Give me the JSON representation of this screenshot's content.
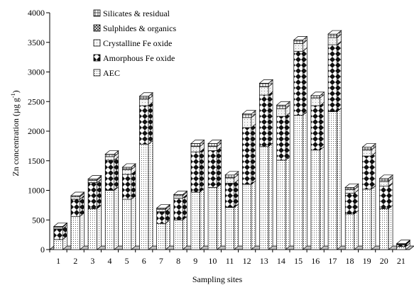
{
  "chart_data": {
    "type": "bar",
    "stacked": true,
    "three_d": true,
    "xlabel": "Sampling sites",
    "ylabel": "Zn concentration (µg g",
    "ylabel_sup": "-1",
    "ylabel_close": ")",
    "ylim": [
      0,
      4000
    ],
    "yticks": [
      0,
      500,
      1000,
      1500,
      2000,
      2500,
      3000,
      3500,
      4000
    ],
    "categories": [
      "1",
      "2",
      "3",
      "4",
      "5",
      "6",
      "7",
      "8",
      "9",
      "10",
      "11",
      "12",
      "13",
      "14",
      "15",
      "16",
      "17",
      "18",
      "19",
      "20",
      "21"
    ],
    "legend_position": "top-left",
    "series": [
      {
        "name": "AEC",
        "pattern": "dots",
        "values": [
          170,
          560,
          690,
          1000,
          850,
          1780,
          440,
          500,
          970,
          1050,
          710,
          1100,
          1740,
          1510,
          2270,
          1680,
          2330,
          600,
          1020,
          690,
          50
        ]
      },
      {
        "name": "Amorphous Fe oxide",
        "pattern": "diamonds",
        "values": [
          180,
          290,
          440,
          510,
          420,
          650,
          200,
          370,
          680,
          620,
          410,
          960,
          870,
          740,
          1080,
          750,
          1130,
          350,
          560,
          380,
          30
        ]
      },
      {
        "name": "Crystalline Fe oxide",
        "pattern": "light",
        "values": [
          30,
          40,
          40,
          60,
          80,
          110,
          40,
          40,
          90,
          70,
          90,
          170,
          140,
          130,
          130,
          130,
          120,
          60,
          100,
          80,
          10
        ]
      },
      {
        "name": "Sulphides & organics",
        "pattern": "crosshatch",
        "values": [
          0,
          0,
          0,
          0,
          0,
          0,
          0,
          0,
          0,
          0,
          0,
          0,
          0,
          0,
          0,
          0,
          0,
          0,
          0,
          0,
          0
        ]
      },
      {
        "name": "Silicates & residual",
        "pattern": "grid",
        "values": [
          10,
          20,
          20,
          40,
          40,
          50,
          20,
          20,
          50,
          50,
          50,
          60,
          60,
          60,
          60,
          40,
          60,
          40,
          50,
          50,
          10
        ]
      }
    ]
  }
}
